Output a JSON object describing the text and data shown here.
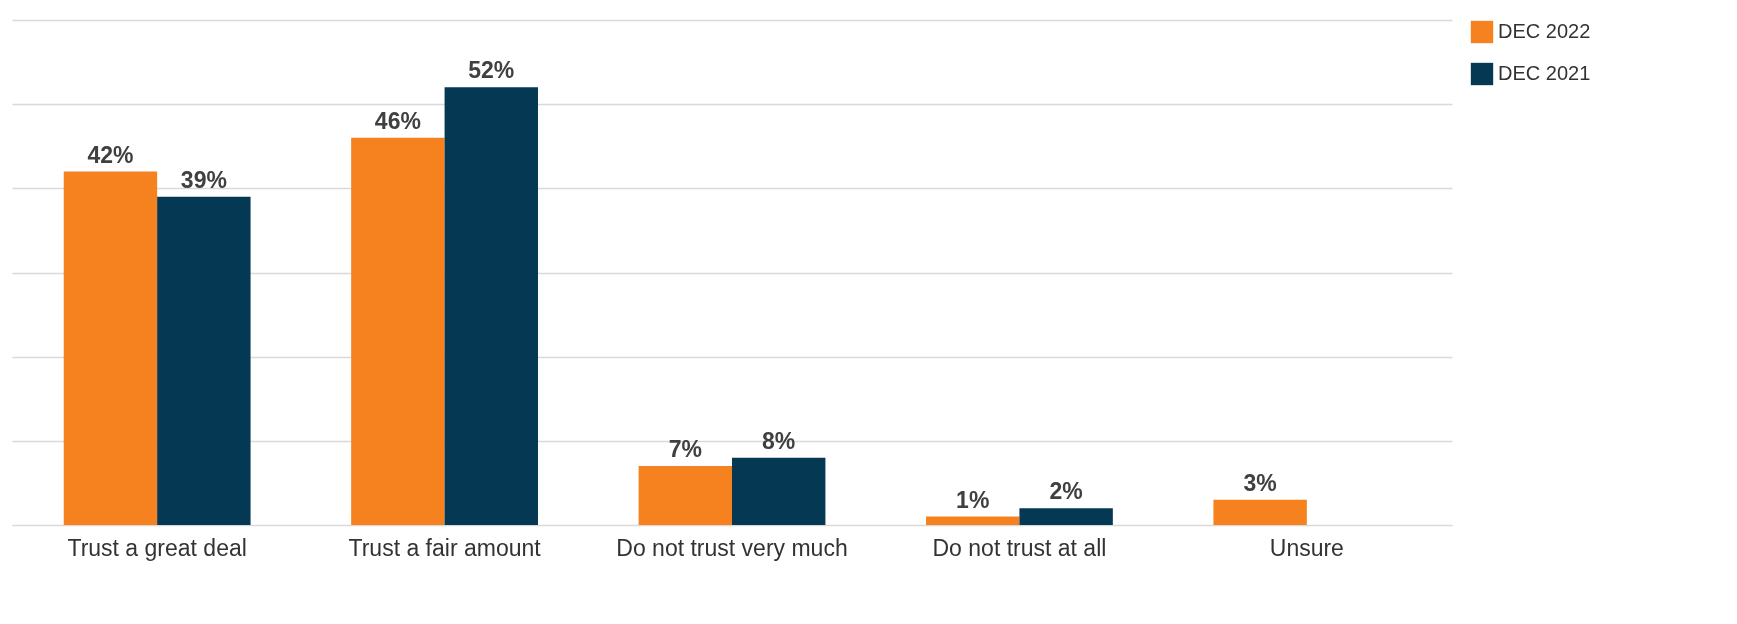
{
  "chart_data": {
    "type": "bar",
    "categories": [
      "Trust a great deal",
      "Trust a fair amount",
      "Do not trust very much",
      "Do not trust at all",
      "Unsure"
    ],
    "series": [
      {
        "name": "DEC 2022",
        "color": "#f5821f",
        "values": [
          42,
          46,
          7,
          1,
          3
        ],
        "value_labels": [
          "42%",
          "46%",
          "7%",
          "1%",
          "3%"
        ]
      },
      {
        "name": "DEC 2021",
        "color": "#053853",
        "values": [
          39,
          52,
          8,
          2,
          null
        ],
        "value_labels": [
          "39%",
          "52%",
          "8%",
          "2%",
          null
        ]
      }
    ],
    "ylim": [
      0,
      60
    ],
    "yticks": [
      {
        "value": 0,
        "label": null
      },
      {
        "value": 10,
        "label": null
      },
      {
        "value": 20,
        "label": null
      },
      {
        "value": 30,
        "label": null
      },
      {
        "value": 40,
        "label": null
      },
      {
        "value": 50,
        "label": null
      },
      {
        "value": 60,
        "label": null
      }
    ],
    "tick_labels": "x",
    "grid": "y",
    "legend": "top right"
  }
}
